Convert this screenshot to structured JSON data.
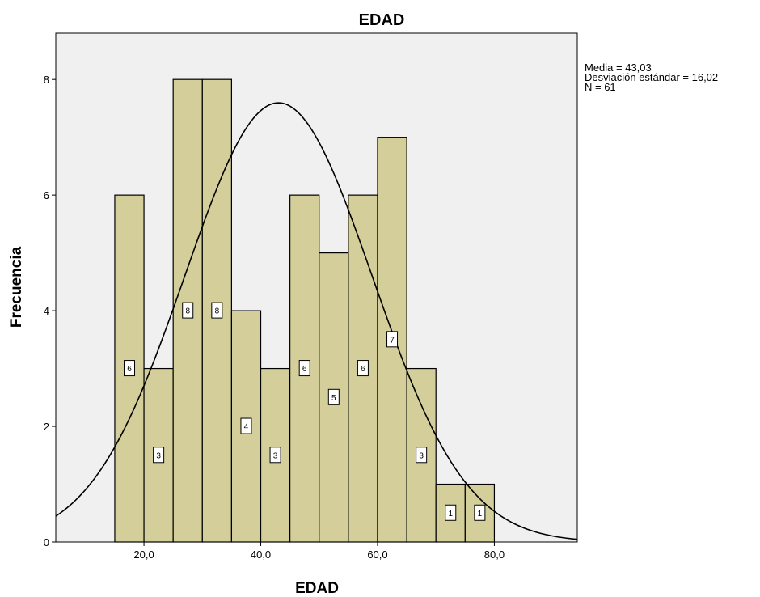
{
  "chart_data": {
    "type": "bar",
    "title": "EDAD",
    "xlabel": "EDAD",
    "ylabel": "Frecuencia",
    "bin_width": 5,
    "bins": [
      {
        "start": 15,
        "end": 20,
        "value": 6
      },
      {
        "start": 20,
        "end": 25,
        "value": 3
      },
      {
        "start": 25,
        "end": 30,
        "value": 8
      },
      {
        "start": 30,
        "end": 35,
        "value": 8
      },
      {
        "start": 35,
        "end": 40,
        "value": 4
      },
      {
        "start": 40,
        "end": 45,
        "value": 3
      },
      {
        "start": 45,
        "end": 50,
        "value": 6
      },
      {
        "start": 50,
        "end": 55,
        "value": 5
      },
      {
        "start": 55,
        "end": 60,
        "value": 6
      },
      {
        "start": 60,
        "end": 65,
        "value": 7
      },
      {
        "start": 65,
        "end": 70,
        "value": 3
      },
      {
        "start": 70,
        "end": 75,
        "value": 1
      },
      {
        "start": 75,
        "end": 80,
        "value": 1
      }
    ],
    "xlim": [
      4.9,
      94.2
    ],
    "ylim": [
      0,
      8.8
    ],
    "x_ticks": [
      {
        "value": 20,
        "label": "20,0"
      },
      {
        "value": 40,
        "label": "40,0"
      },
      {
        "value": 60,
        "label": "60,0"
      },
      {
        "value": 80,
        "label": "80,0"
      }
    ],
    "y_ticks": [
      {
        "value": 0,
        "label": "0"
      },
      {
        "value": 2,
        "label": "2"
      },
      {
        "value": 4,
        "label": "4"
      },
      {
        "value": 6,
        "label": "6"
      },
      {
        "value": 8,
        "label": "8"
      }
    ],
    "normal_curve": {
      "mean": 43.03,
      "sd": 16.02,
      "n": 61
    },
    "stats": [
      "Media = 43,03",
      "Desviación estándar = 16,02",
      "N = 61"
    ],
    "colors": {
      "bar_fill": "#d3ce9a",
      "bar_stroke": "#000000",
      "plot_background": "#f0f0f0",
      "curve": "#000000"
    },
    "grid": false,
    "legend": "none"
  }
}
